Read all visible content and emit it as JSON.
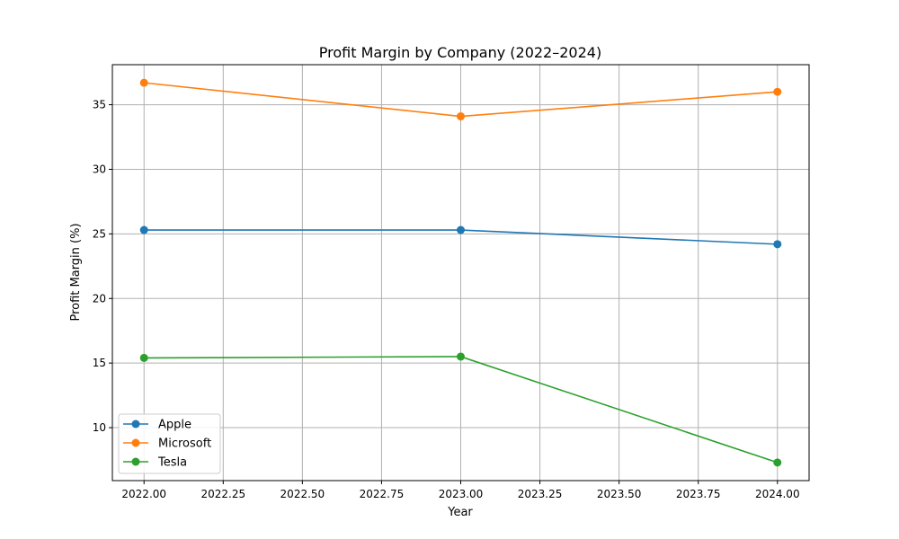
{
  "chart_data": {
    "type": "line",
    "title": "Profit Margin by Company (2022–2024)",
    "xlabel": "Year",
    "ylabel": "Profit Margin (%)",
    "x": [
      2022,
      2023,
      2024
    ],
    "xlim": [
      2021.9,
      2024.1
    ],
    "ylim": [
      5.9,
      38.1
    ],
    "xticks": [
      "2022.00",
      "2022.25",
      "2022.50",
      "2022.75",
      "2023.00",
      "2023.25",
      "2023.50",
      "2023.75",
      "2024.00"
    ],
    "yticks": [
      10,
      15,
      20,
      25,
      30,
      35
    ],
    "grid": true,
    "legend_position": "lower-left",
    "series": [
      {
        "name": "Apple",
        "color": "#1f77b4",
        "marker": "circle",
        "values": [
          25.3,
          25.3,
          24.2
        ]
      },
      {
        "name": "Microsoft",
        "color": "#ff7f0e",
        "marker": "circle",
        "values": [
          36.7,
          34.1,
          36.0
        ]
      },
      {
        "name": "Tesla",
        "color": "#2ca02c",
        "marker": "circle",
        "values": [
          15.4,
          15.5,
          7.3
        ]
      }
    ]
  }
}
